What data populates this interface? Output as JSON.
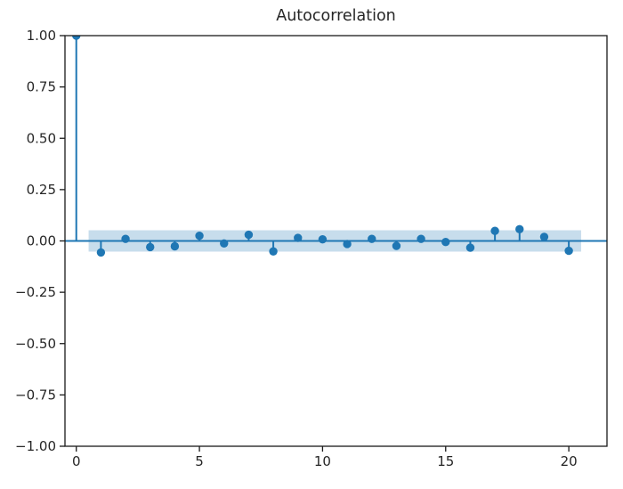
{
  "figure": {
    "background": "#ffffff"
  },
  "chart_data": {
    "type": "stem",
    "title": "Autocorrelation",
    "xlabel": "",
    "ylabel": "",
    "x": [
      0,
      1,
      2,
      3,
      4,
      5,
      6,
      7,
      8,
      9,
      10,
      11,
      12,
      13,
      14,
      15,
      16,
      17,
      18,
      19,
      20
    ],
    "values": [
      1.0,
      -0.056,
      0.01,
      -0.03,
      -0.026,
      0.025,
      -0.012,
      0.03,
      -0.051,
      0.015,
      0.008,
      -0.015,
      0.01,
      -0.024,
      0.01,
      -0.005,
      -0.033,
      0.049,
      0.057,
      0.02,
      -0.048
    ],
    "baseline": 0.0,
    "confidence_band": {
      "halfwidth": 0.052,
      "x_start": 0.5,
      "x_end": 20.5,
      "opacity": 0.25
    },
    "xlim": [
      -0.46,
      21.55
    ],
    "ylim": [
      -1.0,
      1.0
    ],
    "xticks": {
      "values": [
        0,
        5,
        10,
        15,
        20
      ],
      "labels": [
        "0",
        "5",
        "10",
        "15",
        "20"
      ]
    },
    "yticks": {
      "values": [
        1.0,
        0.75,
        0.5,
        0.25,
        0.0,
        -0.25,
        -0.5,
        -0.75,
        -1.0
      ],
      "labels": [
        "1.00",
        "0.75",
        "0.50",
        "0.25",
        "0.00",
        "−0.25",
        "−0.50",
        "−0.75",
        "−1.00"
      ]
    },
    "grid": false,
    "legend_position": "none",
    "colors": {
      "accent": "#1f77b4",
      "band": "#1f77b4",
      "spine": "#1a1a1a",
      "tick_text": "#262626",
      "title_text": "#262626"
    }
  }
}
